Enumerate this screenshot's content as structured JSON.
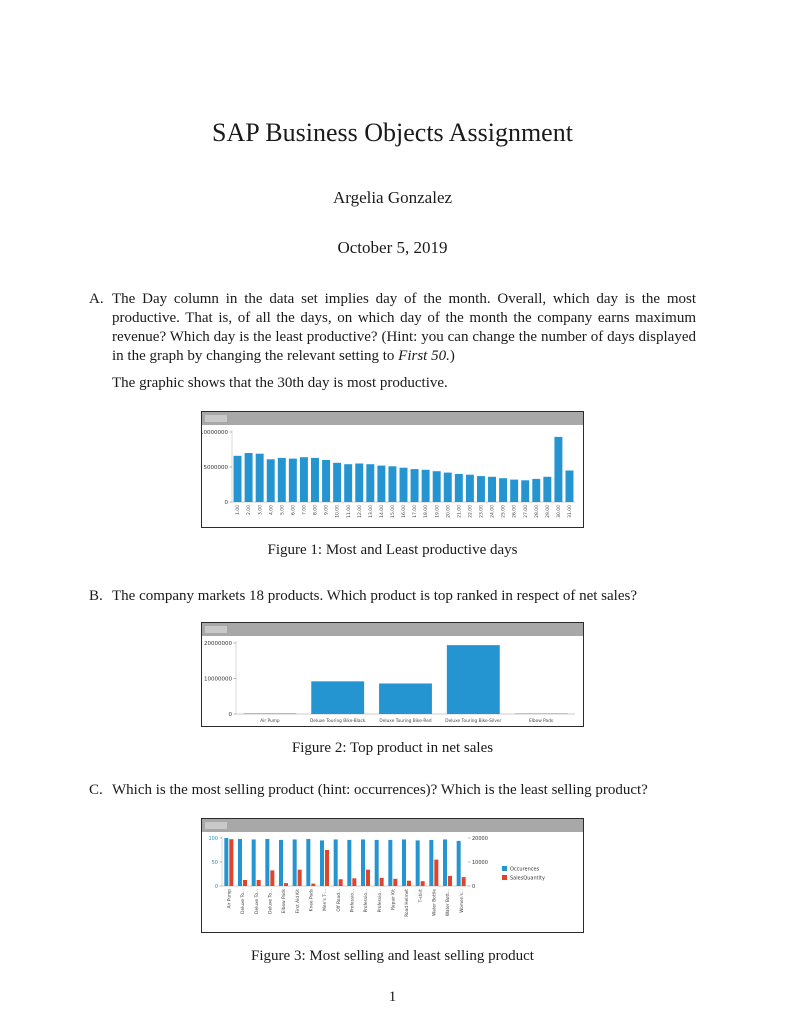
{
  "page": {
    "title": "SAP Business Objects Assignment",
    "author": "Argelia Gonzalez",
    "date": "October 5, 2019",
    "page_number": "1"
  },
  "items": {
    "a": {
      "label": "A.",
      "text_main": "The Day column in the data set implies day of the month. Overall, which day is the most productive. That is, of all the days, on which day of the month the company earns maximum revenue? Which day is the least productive? (Hint: you can change the number of days displayed in the graph by changing the relevant setting to ",
      "text_italic": "First 50.",
      "text_end": ")",
      "followup": "The graphic shows that the 30th day is most productive."
    },
    "b": {
      "label": "B.",
      "text": "The company markets 18 products. Which product is top ranked in respect of net sales?"
    },
    "c": {
      "label": "C.",
      "text": "Which is the most selling product (hint: occurrences)? Which is the least selling product?"
    }
  },
  "figures": {
    "fig1": {
      "caption": "Figure 1: Most and Least productive days"
    },
    "fig2": {
      "caption": "Figure 2: Top product in net sales"
    },
    "fig3": {
      "caption": "Figure 3: Most selling and least selling product"
    }
  },
  "chart_data": [
    {
      "figure": "figure-1",
      "type": "bar",
      "title": "",
      "xlabel": "",
      "ylabel": "",
      "categories": [
        "1.00",
        "2.00",
        "3.00",
        "4.00",
        "5.00",
        "6.00",
        "7.00",
        "8.00",
        "9.00",
        "10.00",
        "11.00",
        "12.00",
        "13.00",
        "14.00",
        "15.00",
        "16.00",
        "17.00",
        "18.00",
        "19.00",
        "20.00",
        "21.00",
        "22.00",
        "23.00",
        "24.00",
        "25.00",
        "26.00",
        "27.00",
        "28.00",
        "29.00",
        "30.00",
        "31.00"
      ],
      "values": [
        6600000,
        7000000,
        6900000,
        6100000,
        6300000,
        6200000,
        6400000,
        6300000,
        6000000,
        5600000,
        5400000,
        5500000,
        5400000,
        5200000,
        5100000,
        4900000,
        4700000,
        4600000,
        4400000,
        4200000,
        4000000,
        3900000,
        3700000,
        3600000,
        3400000,
        3200000,
        3100000,
        3300000,
        3600000,
        9300000,
        4500000
      ],
      "bar_color": "#2595d1",
      "ylim": [
        0,
        10000000
      ],
      "yticks": [
        0,
        5000000,
        10000000
      ],
      "grid": false,
      "legend": "none"
    },
    {
      "figure": "figure-2",
      "type": "bar",
      "title": "",
      "xlabel": "",
      "ylabel": "",
      "categories": [
        "Air Pump",
        "Deluxe Touring Bike-Black",
        "Deluxe Touring Bike-Red",
        "Deluxe Touring Bike-Silver",
        "Elbow Pads"
      ],
      "values": [
        150000,
        9200000,
        8600000,
        19400000,
        120000
      ],
      "bar_color": "#2595d1",
      "ylim": [
        0,
        20000000
      ],
      "yticks": [
        0,
        10000000,
        20000000
      ],
      "grid": false,
      "legend": "none"
    },
    {
      "figure": "figure-3",
      "type": "bar",
      "title": "",
      "xlabel": "",
      "ylabel": "",
      "categories": [
        "Air Pump",
        "Deluxe To...",
        "Deluxe To...",
        "Deluxe To...",
        "Elbow Pads",
        "First Aid Kit",
        "Knee Pads",
        "Men's T-...",
        "Off Road...",
        "Professio...",
        "Professio...",
        "Professio...",
        "Repair Kit",
        "Road Helmet",
        "T-shirt",
        "Water Bottle",
        "Water Bott...",
        "Women's..."
      ],
      "series": [
        {
          "name": "Occurences",
          "color": "#2595d1",
          "axis": "left",
          "values": [
            100,
            98,
            97,
            98,
            96,
            97,
            98,
            95,
            97,
            96,
            97,
            96,
            96,
            97,
            95,
            96,
            97,
            94
          ]
        },
        {
          "name": "SalesQuantity",
          "color": "#e0452c",
          "axis": "right",
          "values": [
            19500,
            2500,
            2500,
            6500,
            1200,
            6800,
            1000,
            15000,
            2800,
            3200,
            6800,
            3400,
            3000,
            2200,
            2000,
            11000,
            4200,
            3700
          ]
        }
      ],
      "left_ylim": [
        0,
        100
      ],
      "left_yticks": [
        0,
        50,
        100
      ],
      "right_ylim": [
        0,
        20000
      ],
      "right_yticks": [
        0,
        10000,
        20000
      ],
      "grid": false,
      "legend_position": "right"
    }
  ]
}
